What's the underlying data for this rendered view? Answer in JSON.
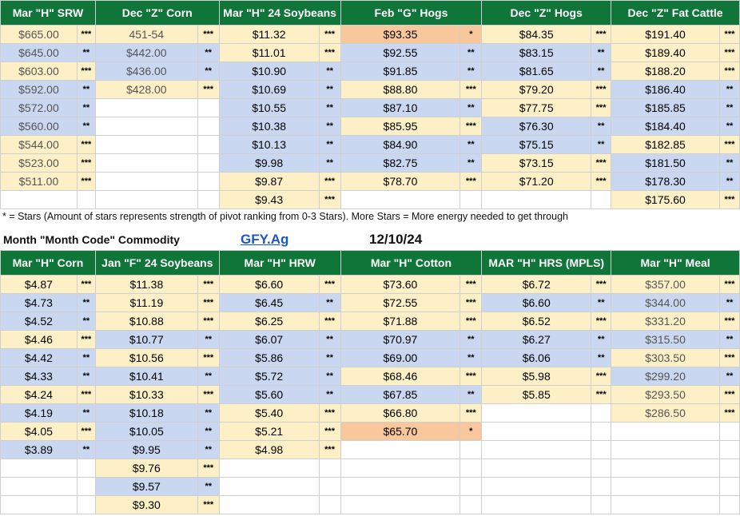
{
  "top": {
    "headers": [
      "Mar \"H\" SRW",
      "Dec \"Z\" Corn",
      "Mar \"H\" 24 Soybeans",
      "Feb \"G\" Hogs",
      "Dec \"Z\" Hogs",
      "Dec \"Z\" Fat  Cattle"
    ],
    "colors": [
      "#0f7538",
      "#fdf0c6",
      "#c9d7f1",
      "#f9c79c"
    ],
    "rows": [
      [
        [
          "$665.00",
          "***",
          "y"
        ],
        [
          "451-54",
          "***",
          "y"
        ],
        [
          "$11.32",
          "***",
          "y"
        ],
        [
          "$93.35",
          "*",
          "o"
        ],
        [
          "$84.35",
          "***",
          "y"
        ],
        [
          "$191.40",
          "***",
          "y"
        ]
      ],
      [
        [
          "$645.00",
          "**",
          "b"
        ],
        [
          "$442.00",
          "**",
          "b"
        ],
        [
          "$11.01",
          "***",
          "y"
        ],
        [
          "$92.55",
          "**",
          "b"
        ],
        [
          "$83.15",
          "**",
          "b"
        ],
        [
          "$189.40",
          "***",
          "y"
        ]
      ],
      [
        [
          "$603.00",
          "***",
          "y"
        ],
        [
          "$436.00",
          "**",
          "b"
        ],
        [
          "$10.90",
          "**",
          "b"
        ],
        [
          "$91.85",
          "**",
          "b"
        ],
        [
          "$81.65",
          "**",
          "b"
        ],
        [
          "$188.20",
          "***",
          "y"
        ]
      ],
      [
        [
          "$592.00",
          "**",
          "b"
        ],
        [
          "$428.00",
          "***",
          "y"
        ],
        [
          "$10.69",
          "**",
          "b"
        ],
        [
          "$88.80",
          "***",
          "y"
        ],
        [
          "$79.20",
          "***",
          "y"
        ],
        [
          "$186.40",
          "**",
          "b"
        ]
      ],
      [
        [
          "$572.00",
          "**",
          "b"
        ],
        null,
        [
          "$10.55",
          "**",
          "b"
        ],
        [
          "$87.10",
          "**",
          "b"
        ],
        [
          "$77.75",
          "***",
          "y"
        ],
        [
          "$185.85",
          "**",
          "b"
        ]
      ],
      [
        [
          "$560.00",
          "**",
          "b"
        ],
        null,
        [
          "$10.38",
          "**",
          "b"
        ],
        [
          "$85.95",
          "***",
          "y"
        ],
        [
          "$76.30",
          "**",
          "b"
        ],
        [
          "$184.40",
          "**",
          "b"
        ]
      ],
      [
        [
          "$544.00",
          "***",
          "y"
        ],
        null,
        [
          "$10.13",
          "**",
          "b"
        ],
        [
          "$84.90",
          "**",
          "b"
        ],
        [
          "$75.15",
          "**",
          "b"
        ],
        [
          "$182.85",
          "***",
          "y"
        ]
      ],
      [
        [
          "$523.00",
          "***",
          "y"
        ],
        null,
        [
          "$9.98",
          "**",
          "b"
        ],
        [
          "$82.75",
          "**",
          "b"
        ],
        [
          "$73.15",
          "***",
          "y"
        ],
        [
          "$181.50",
          "**",
          "b"
        ]
      ],
      [
        [
          "$511.00",
          "***",
          "y"
        ],
        null,
        [
          "$9.87",
          "***",
          "y"
        ],
        [
          "$78.70",
          "***",
          "y"
        ],
        [
          "$71.20",
          "***",
          "y"
        ],
        [
          "$178.30",
          "**",
          "b"
        ]
      ],
      [
        null,
        null,
        [
          "$9.43",
          "***",
          "y"
        ],
        null,
        null,
        [
          "$175.60",
          "***",
          "y"
        ]
      ]
    ]
  },
  "note": "* = Stars (Amount of stars represents strength of pivot ranking from 0-3 Stars). More Stars = More energy needed to get through",
  "info": {
    "title": "Month \"Month Code\" Commodity",
    "link": "GFY.Ag",
    "date": "12/10/24"
  },
  "bottom": {
    "headers": [
      "Mar \"H\" Corn",
      "Jan \"F\" 24 Soybeans",
      "Mar \"H\" HRW",
      "Mar \"H\" Cotton",
      "MAR \"H\" HRS (MPLS)",
      "Mar \"H\" Meal"
    ],
    "rows": [
      [
        [
          "$4.87",
          "***",
          "y"
        ],
        [
          "$11.38",
          "***",
          "y"
        ],
        [
          "$6.60",
          "***",
          "y"
        ],
        [
          "$73.60",
          "***",
          "y"
        ],
        [
          "$6.72",
          "***",
          "y"
        ],
        [
          "$357.00",
          "***",
          "y"
        ]
      ],
      [
        [
          "$4.73",
          "**",
          "b"
        ],
        [
          "$11.19",
          "***",
          "y"
        ],
        [
          "$6.45",
          "**",
          "b"
        ],
        [
          "$72.55",
          "***",
          "y"
        ],
        [
          "$6.60",
          "**",
          "b"
        ],
        [
          "$344.00",
          "**",
          "b"
        ]
      ],
      [
        [
          "$4.52",
          "**",
          "b"
        ],
        [
          "$10.88",
          "***",
          "y"
        ],
        [
          "$6.25",
          "***",
          "y"
        ],
        [
          "$71.88",
          "***",
          "y"
        ],
        [
          "$6.52",
          "***",
          "y"
        ],
        [
          "$331.20",
          "***",
          "y"
        ]
      ],
      [
        [
          "$4.46",
          "***",
          "y"
        ],
        [
          "$10.77",
          "**",
          "b"
        ],
        [
          "$6.07",
          "**",
          "b"
        ],
        [
          "$70.97",
          "**",
          "b"
        ],
        [
          "$6.27",
          "**",
          "b"
        ],
        [
          "$315.50",
          "**",
          "b"
        ]
      ],
      [
        [
          "$4.42",
          "**",
          "b"
        ],
        [
          "$10.56",
          "***",
          "y"
        ],
        [
          "$5.86",
          "**",
          "b"
        ],
        [
          "$69.00",
          "**",
          "b"
        ],
        [
          "$6.06",
          "**",
          "b"
        ],
        [
          "$303.50",
          "***",
          "y"
        ]
      ],
      [
        [
          "$4.33",
          "**",
          "b"
        ],
        [
          "$10.41",
          "**",
          "b"
        ],
        [
          "$5.72",
          "**",
          "b"
        ],
        [
          "$68.46",
          "***",
          "y"
        ],
        [
          "$5.98",
          "***",
          "y"
        ],
        [
          "$299.20",
          "**",
          "b"
        ]
      ],
      [
        [
          "$4.24",
          "***",
          "y"
        ],
        [
          "$10.33",
          "***",
          "y"
        ],
        [
          "$5.60",
          "**",
          "b"
        ],
        [
          "$67.85",
          "**",
          "b"
        ],
        [
          "$5.85",
          "***",
          "y"
        ],
        [
          "$293.50",
          "***",
          "y"
        ]
      ],
      [
        [
          "$4.19",
          "**",
          "b"
        ],
        [
          "$10.18",
          "**",
          "b"
        ],
        [
          "$5.40",
          "***",
          "y"
        ],
        [
          "$66.80",
          "***",
          "y"
        ],
        null,
        [
          "$286.50",
          "***",
          "y"
        ]
      ],
      [
        [
          "$4.05",
          "***",
          "y"
        ],
        [
          "$10.05",
          "**",
          "b"
        ],
        [
          "$5.21",
          "***",
          "y"
        ],
        [
          "$65.70",
          "*",
          "o"
        ],
        null,
        null
      ],
      [
        [
          "$3.89",
          "**",
          "b"
        ],
        [
          "$9.95",
          "**",
          "b"
        ],
        [
          "$4.98",
          "***",
          "y"
        ],
        null,
        null,
        null
      ],
      [
        null,
        [
          "$9.76",
          "***",
          "y"
        ],
        null,
        null,
        null,
        null
      ],
      [
        null,
        [
          "$9.57",
          "**",
          "b"
        ],
        null,
        null,
        null,
        null
      ],
      [
        null,
        [
          "$9.30",
          "***",
          "y"
        ],
        null,
        null,
        null,
        null
      ]
    ]
  }
}
